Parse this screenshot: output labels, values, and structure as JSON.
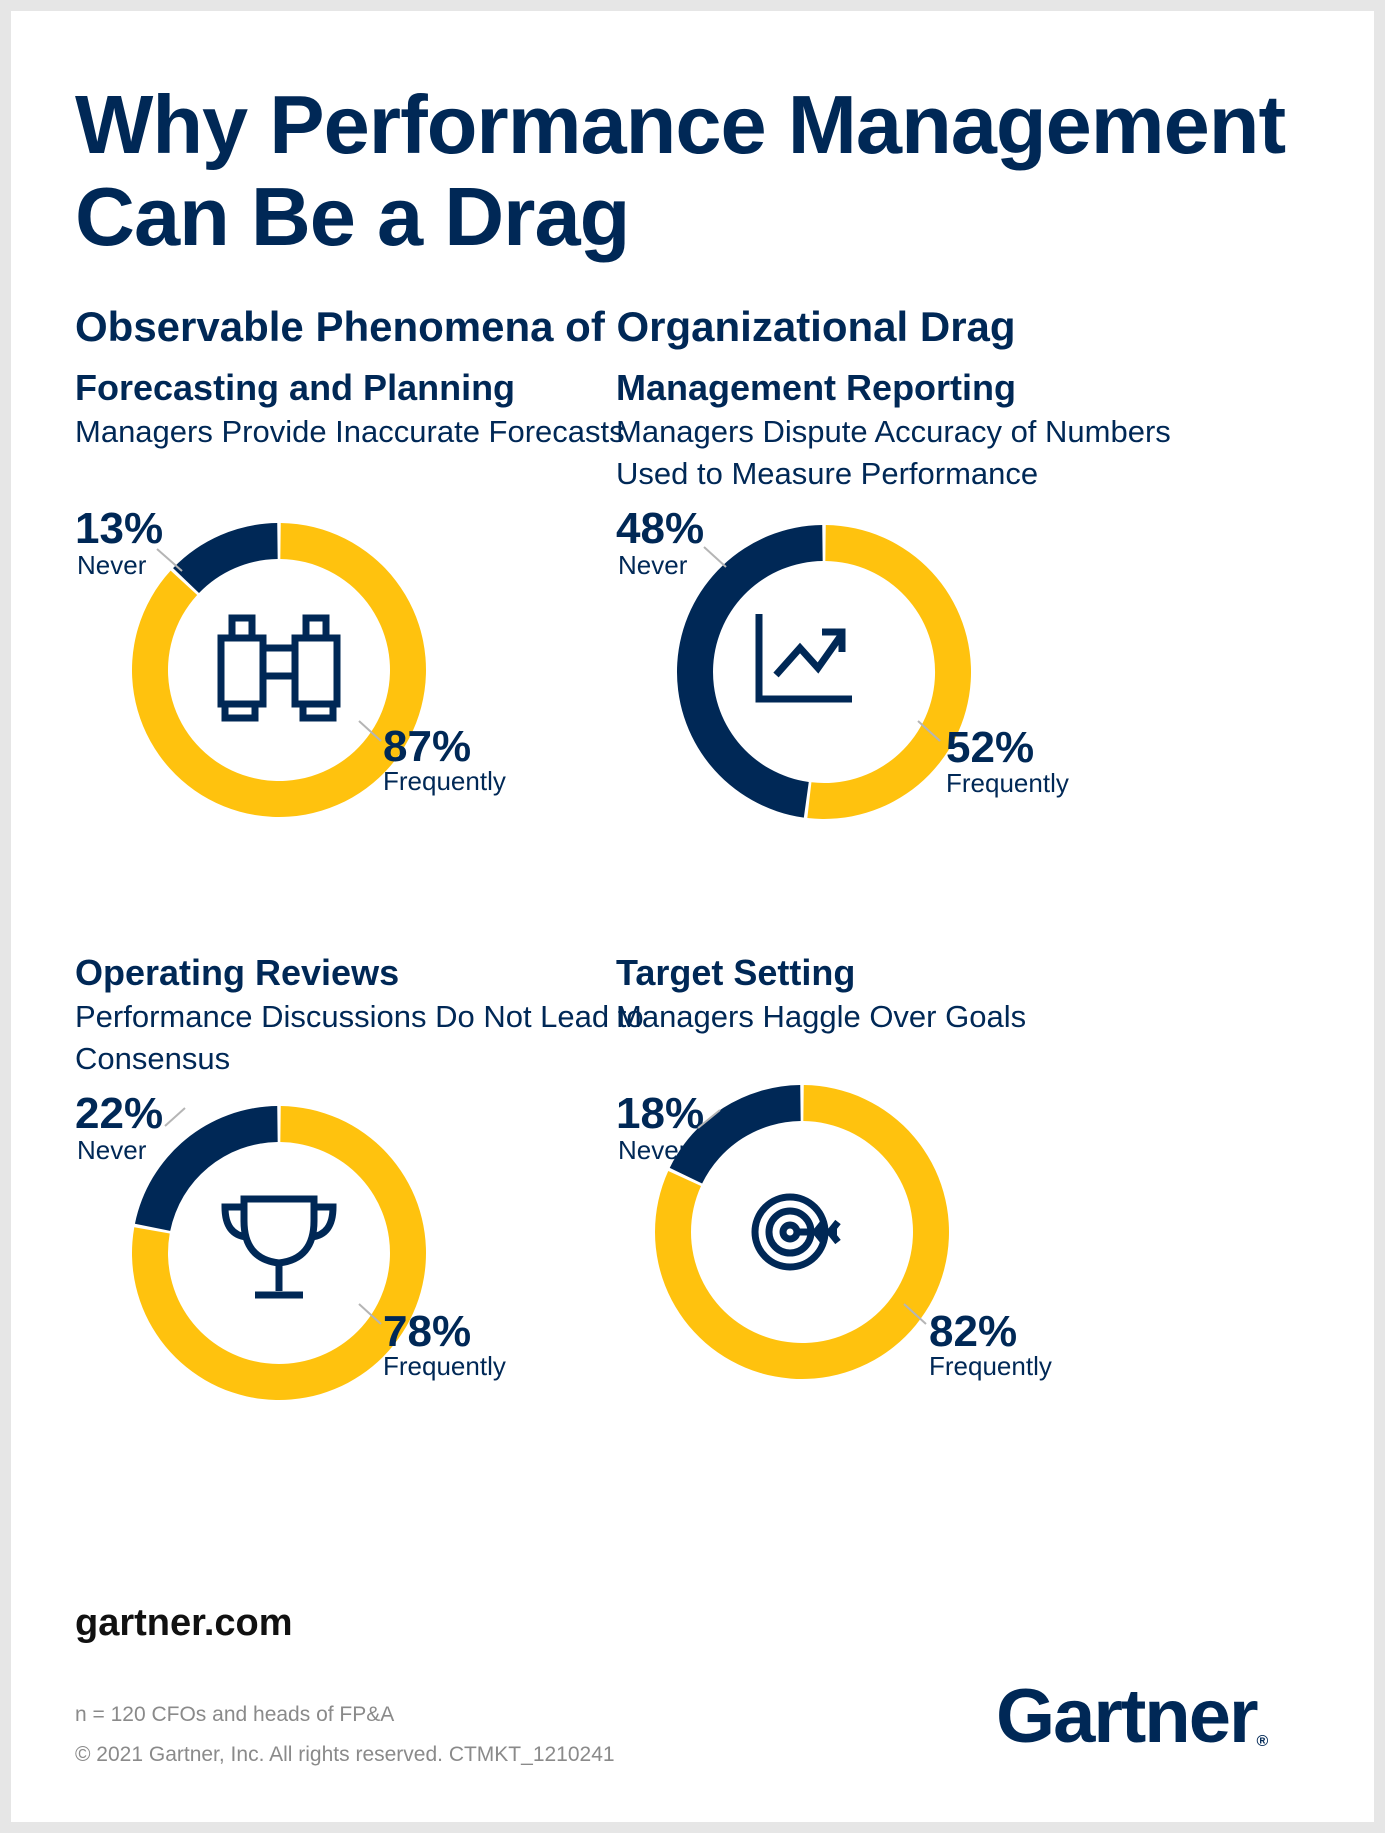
{
  "title": "Why Performance Management Can Be a Drag",
  "subtitle": "Observable Phenomena of Organizational Drag",
  "colors": {
    "navy": "#002856",
    "yellow": "#FFC20E"
  },
  "chart_data": [
    {
      "type": "pie",
      "title": "Forecasting and Planning",
      "subtitle": "Managers Provide Inaccurate Forecasts",
      "icon": "binoculars-icon",
      "slices": [
        {
          "label": "Never",
          "value": 13,
          "display": "13%",
          "color": "#002856"
        },
        {
          "label": "Frequently",
          "value": 87,
          "display": "87%",
          "color": "#FFC20E"
        }
      ]
    },
    {
      "type": "pie",
      "title": "Management Reporting",
      "subtitle": "Managers Dispute Accuracy of Numbers Used to Measure Performance",
      "icon": "line-chart-icon",
      "slices": [
        {
          "label": "Never",
          "value": 48,
          "display": "48%",
          "color": "#002856"
        },
        {
          "label": "Frequently",
          "value": 52,
          "display": "52%",
          "color": "#FFC20E"
        }
      ]
    },
    {
      "type": "pie",
      "title": "Operating Reviews",
      "subtitle": "Performance Discussions Do Not Lead to Consensus",
      "icon": "trophy-icon",
      "slices": [
        {
          "label": "Never",
          "value": 22,
          "display": "22%",
          "color": "#002856"
        },
        {
          "label": "Frequently",
          "value": 78,
          "display": "78%",
          "color": "#FFC20E"
        }
      ]
    },
    {
      "type": "pie",
      "title": "Target Setting",
      "subtitle": "Managers Haggle Over Goals",
      "icon": "target-icon",
      "slices": [
        {
          "label": "Never",
          "value": 18,
          "display": "18%",
          "color": "#002856"
        },
        {
          "label": "Frequently",
          "value": 82,
          "display": "82%",
          "color": "#FFC20E"
        }
      ]
    }
  ],
  "footer": {
    "site": "gartner.com",
    "sample": "n = 120 CFOs and heads of FP&A",
    "copyright": "© 2021 Gartner, Inc. All rights reserved. CTMKT_1210241",
    "logo": "Gartner",
    "logo_mark": "®"
  }
}
